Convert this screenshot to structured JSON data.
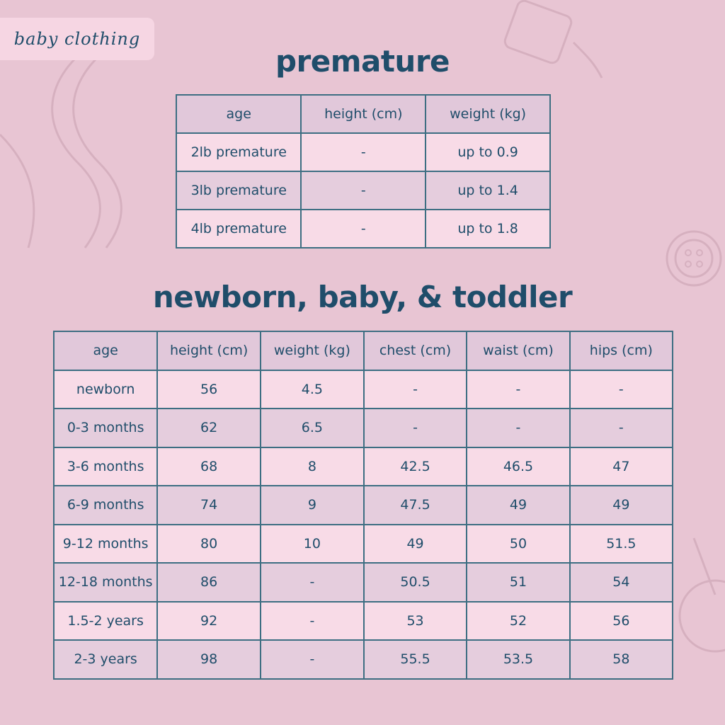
{
  "tag_label": "baby clothing",
  "premature": {
    "title": "premature",
    "headers": [
      "age",
      "height (cm)",
      "weight (kg)"
    ],
    "rows": [
      [
        "2lb premature",
        "-",
        "up to 0.9"
      ],
      [
        "3lb premature",
        "-",
        "up to 1.4"
      ],
      [
        "4lb premature",
        "-",
        "up to 1.8"
      ]
    ]
  },
  "main": {
    "title": "newborn, baby, & toddler",
    "headers": [
      "age",
      "height (cm)",
      "weight (kg)",
      "chest (cm)",
      "waist (cm)",
      "hips (cm)"
    ],
    "rows": [
      [
        "newborn",
        "56",
        "4.5",
        "-",
        "-",
        "-"
      ],
      [
        "0-3 months",
        "62",
        "6.5",
        "-",
        "-",
        "-"
      ],
      [
        "3-6 months",
        "68",
        "8",
        "42.5",
        "46.5",
        "47"
      ],
      [
        "6-9 months",
        "74",
        "9",
        "47.5",
        "49",
        "49"
      ],
      [
        "9-12 months",
        "80",
        "10",
        "49",
        "50",
        "51.5"
      ],
      [
        "12-18 months",
        "86",
        "-",
        "50.5",
        "51",
        "54"
      ],
      [
        "1.5-2 years",
        "92",
        "-",
        "53",
        "52",
        "56"
      ],
      [
        "2-3 years",
        "98",
        "-",
        "55.5",
        "53.5",
        "58"
      ]
    ]
  },
  "colors": {
    "background": "#e8c5d3",
    "text": "#1f4d6a",
    "border": "#3d6e82",
    "row_light": "#f8dbe7",
    "row_dark": "#e5cddd"
  }
}
